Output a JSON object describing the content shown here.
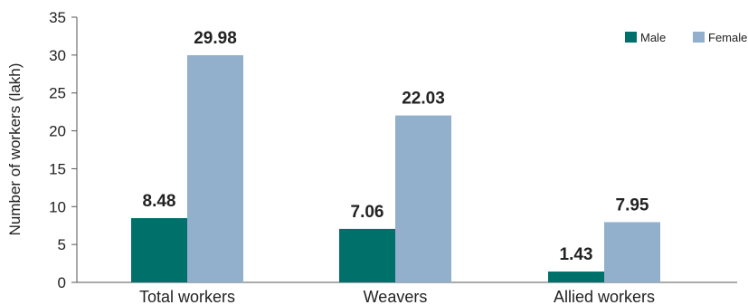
{
  "chart_data": {
    "type": "bar",
    "categories": [
      "Total workers",
      "Weavers",
      "Allied workers"
    ],
    "series": [
      {
        "name": "Male",
        "values": [
          8.48,
          7.06,
          1.43
        ],
        "color": "#00706b"
      },
      {
        "name": "Female",
        "values": [
          29.98,
          22.03,
          7.95
        ],
        "color": "#92afcc"
      }
    ],
    "value_labels": [
      [
        "8.48",
        "7.06",
        "1.43"
      ],
      [
        "29.98",
        "22.03",
        "7.95"
      ]
    ],
    "ylabel": "Number of workers (lakh)",
    "xlabel": "",
    "ylim": [
      0,
      35
    ],
    "yticks": [
      0,
      5,
      10,
      15,
      20,
      25,
      30,
      35
    ],
    "grid": false,
    "legend_position": "top-right"
  }
}
